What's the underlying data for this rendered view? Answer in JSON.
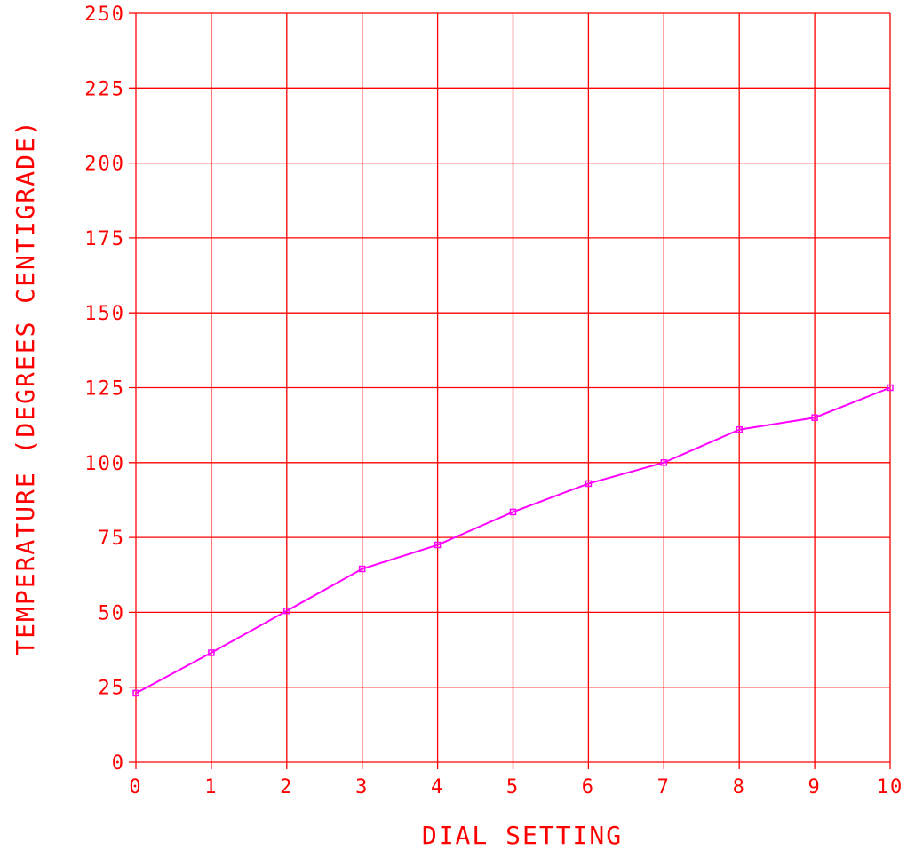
{
  "chart_data": {
    "type": "line",
    "title": "",
    "xlabel": "DIAL SETTING",
    "ylabel": "TEMPERATURE (DEGREES CENTIGRADE)",
    "xlim": [
      0,
      10
    ],
    "ylim": [
      0,
      250
    ],
    "xticks": [
      "0",
      "1",
      "2",
      "3",
      "4",
      "5",
      "6",
      "7",
      "8",
      "9",
      "10"
    ],
    "yticks": [
      "0",
      "25",
      "50",
      "75",
      "100",
      "125",
      "150",
      "175",
      "200",
      "225",
      "250"
    ],
    "grid": true,
    "series": [
      {
        "x": [
          0,
          1,
          2,
          3,
          4,
          5,
          6,
          7,
          8,
          9,
          10
        ],
        "y": [
          23,
          36.5,
          50.5,
          64.5,
          72.5,
          83.5,
          93,
          100,
          111,
          115,
          125
        ]
      }
    ],
    "colors": {
      "axes": "#ff0000",
      "series": "#ff00ff",
      "text": "#ff0000"
    }
  }
}
